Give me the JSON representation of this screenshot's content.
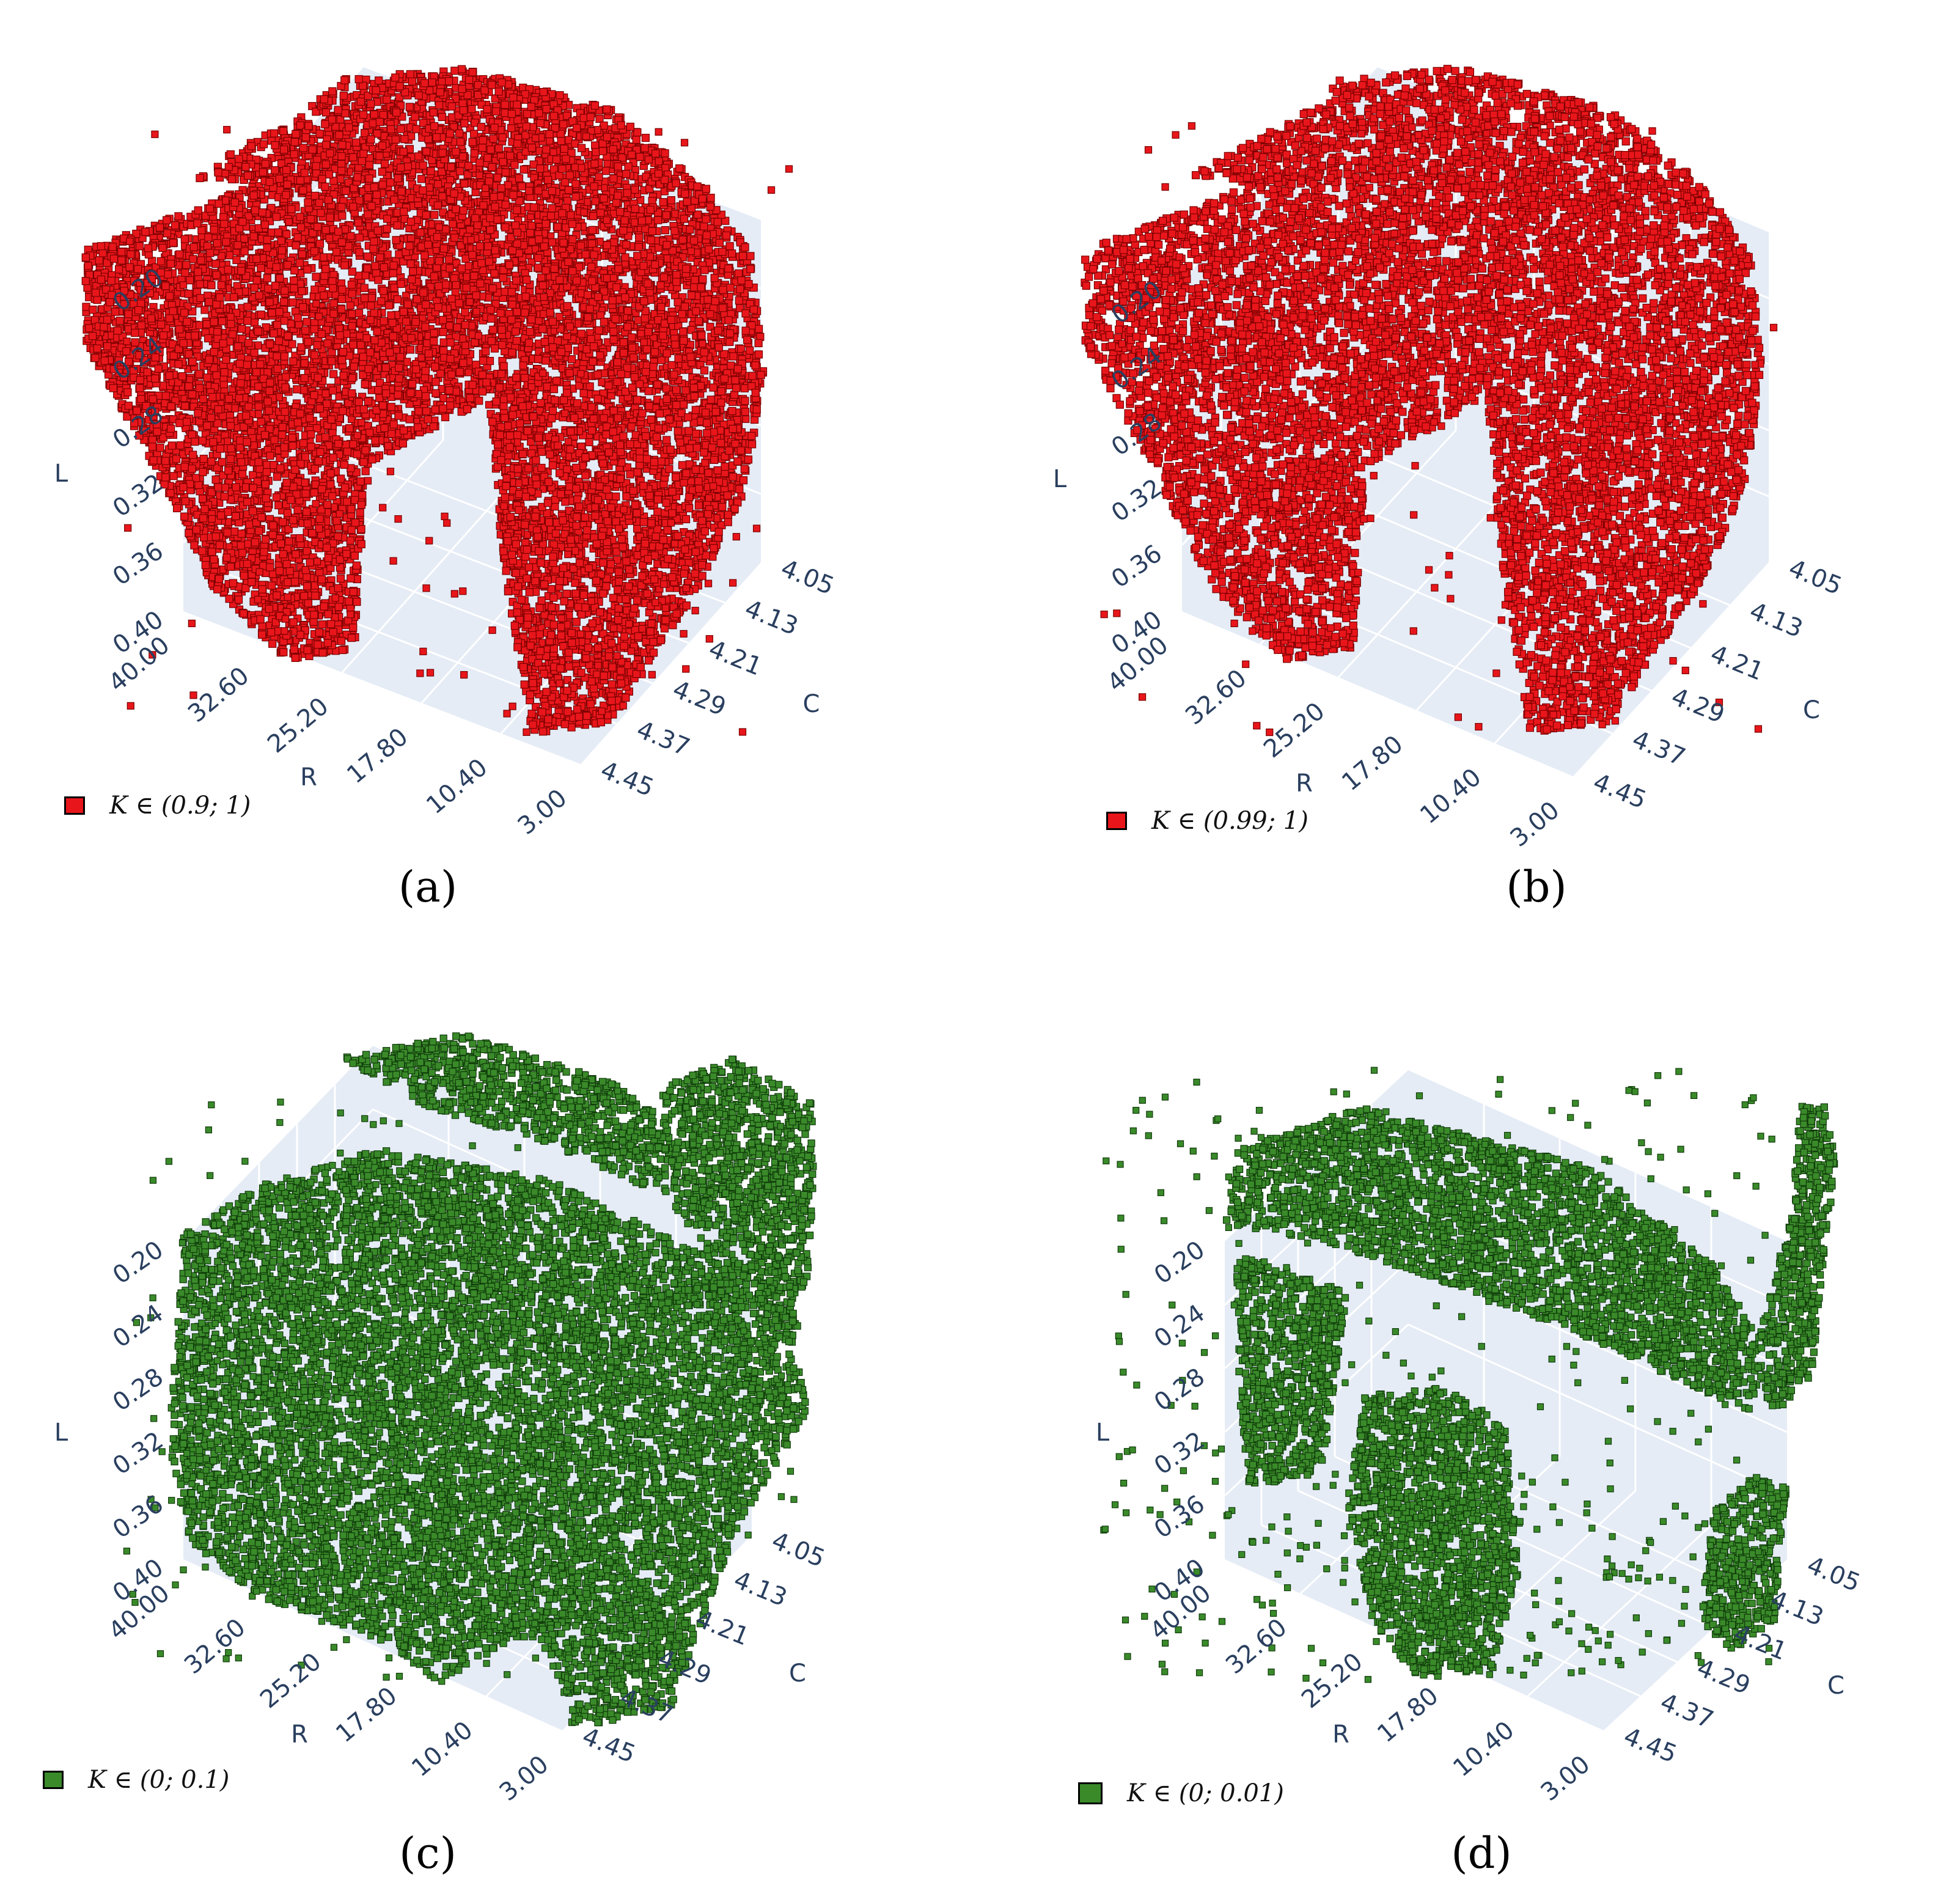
{
  "chart_data": [
    {
      "type": "scatter3d",
      "caption": "(a)",
      "legend": "K ∈ (0.9; 1)",
      "color": "#e8161b",
      "edge": "#7a0000",
      "axes": {
        "x": {
          "label": "R",
          "ticks": [
            "40.00",
            "32.60",
            "25.20",
            "17.80",
            "10.40",
            "3.00"
          ]
        },
        "y": {
          "label": "C",
          "ticks": [
            "4.05",
            "4.13",
            "4.21",
            "4.29",
            "4.37",
            "4.45"
          ]
        },
        "z": {
          "label": "L",
          "ticks": [
            "0.20",
            "0.24",
            "0.28",
            "0.32",
            "0.36",
            "0.40"
          ]
        }
      },
      "pattern": "dense-red"
    },
    {
      "type": "scatter3d",
      "caption": "(b)",
      "legend": "K ∈ (0.99; 1)",
      "color": "#e8161b",
      "edge": "#7a0000",
      "axes": {
        "x": {
          "label": "R",
          "ticks": [
            "40.00",
            "32.60",
            "25.20",
            "17.80",
            "10.40",
            "3.00"
          ]
        },
        "y": {
          "label": "C",
          "ticks": [
            "4.05",
            "4.13",
            "4.21",
            "4.29",
            "4.37",
            "4.45"
          ]
        },
        "z": {
          "label": "L",
          "ticks": [
            "0.20",
            "0.24",
            "0.28",
            "0.32",
            "0.36",
            "0.40"
          ]
        }
      },
      "pattern": "dense-red-b"
    },
    {
      "type": "scatter3d",
      "caption": "(c)",
      "legend": "K ∈ (0; 0.1)",
      "color": "#3a8a2a",
      "edge": "#0f3a0a",
      "axes": {
        "x": {
          "label": "R",
          "ticks": [
            "40.00",
            "32.60",
            "25.20",
            "17.80",
            "10.40",
            "3.00"
          ]
        },
        "y": {
          "label": "C",
          "ticks": [
            "4.05",
            "4.13",
            "4.21",
            "4.29",
            "4.37",
            "4.45"
          ]
        },
        "z": {
          "label": "L",
          "ticks": [
            "0.20",
            "0.24",
            "0.28",
            "0.32",
            "0.36",
            "0.40"
          ]
        }
      },
      "pattern": "dense-green"
    },
    {
      "type": "scatter3d",
      "caption": "(d)",
      "legend": "K ∈ (0; 0.01)",
      "color": "#3a8a2a",
      "edge": "#0f3a0a",
      "axes": {
        "x": {
          "label": "R",
          "ticks": [
            "40.00",
            "32.60",
            "25.20",
            "17.80",
            "10.40",
            "3.00"
          ]
        },
        "y": {
          "label": "C",
          "ticks": [
            "4.05",
            "4.13",
            "4.21",
            "4.29",
            "4.37",
            "4.45"
          ]
        },
        "z": {
          "label": "L",
          "ticks": [
            "0.20",
            "0.24",
            "0.28",
            "0.32",
            "0.36",
            "0.40"
          ]
        }
      },
      "pattern": "sparse-green"
    }
  ],
  "scene": {
    "plane_fill": "#e5ecf6",
    "grid_color": "#ffffff",
    "tick_color": "#2a3f5f"
  }
}
